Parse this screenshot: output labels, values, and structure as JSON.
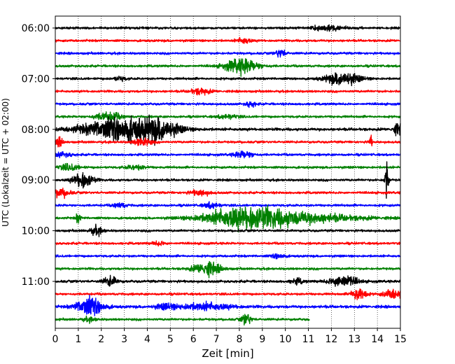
{
  "chart_data": {
    "type": "line",
    "title": "",
    "xlabel": "Zeit  [min]",
    "ylabel": "UTC (Lokalzeit = UTC + 02:00)",
    "xlim": [
      0,
      15
    ],
    "x_ticks": [
      0,
      1,
      2,
      3,
      4,
      5,
      6,
      7,
      8,
      9,
      10,
      11,
      12,
      13,
      14,
      15
    ],
    "x_tick_labels": [
      "0",
      "1",
      "2",
      "3",
      "4",
      "5",
      "6",
      "7",
      "8",
      "9",
      "10",
      "11",
      "12",
      "13",
      "14",
      "15"
    ],
    "y_tick_labels": [
      "06:00",
      "07:00",
      "08:00",
      "09:00",
      "10:00",
      "11:00"
    ],
    "y_tick_rows": [
      0,
      4,
      8,
      12,
      16,
      20
    ],
    "grid": "vertical-dotted",
    "trace_colors": [
      "#000000",
      "#ff0000",
      "#0000ff",
      "#008000"
    ],
    "traces": [
      {
        "row": 0,
        "end_min": 15,
        "base_amp": 1.0,
        "events": [
          {
            "t": 11.8,
            "amp": 2.0,
            "w": 0.5
          }
        ]
      },
      {
        "row": 1,
        "end_min": 15,
        "base_amp": 1.0,
        "events": [
          {
            "t": 8.2,
            "amp": 2.2,
            "w": 0.2
          }
        ]
      },
      {
        "row": 2,
        "end_min": 15,
        "base_amp": 1.0,
        "events": [
          {
            "t": 9.8,
            "amp": 3.0,
            "w": 0.15
          }
        ]
      },
      {
        "row": 3,
        "end_min": 15,
        "base_amp": 1.0,
        "events": [
          {
            "t": 8.1,
            "amp": 5.5,
            "w": 0.5
          }
        ]
      },
      {
        "row": 4,
        "end_min": 15,
        "base_amp": 1.0,
        "events": [
          {
            "t": 12.5,
            "amp": 5.0,
            "w": 0.5
          },
          {
            "t": 2.8,
            "amp": 1.5,
            "w": 0.2
          }
        ]
      },
      {
        "row": 5,
        "end_min": 15,
        "base_amp": 1.0,
        "events": [
          {
            "t": 6.3,
            "amp": 2.2,
            "w": 0.3
          }
        ]
      },
      {
        "row": 6,
        "end_min": 15,
        "base_amp": 1.0,
        "events": [
          {
            "t": 8.5,
            "amp": 2.0,
            "w": 0.15
          }
        ]
      },
      {
        "row": 7,
        "end_min": 15,
        "base_amp": 1.0,
        "events": [
          {
            "t": 2.3,
            "amp": 3.0,
            "w": 0.4
          },
          {
            "t": 7.5,
            "amp": 1.5,
            "w": 0.3
          }
        ]
      },
      {
        "row": 8,
        "end_min": 15,
        "base_amp": 1.2,
        "events": [
          {
            "t": 3.0,
            "amp": 9.0,
            "w": 1.2
          },
          {
            "t": 4.6,
            "amp": 5.0,
            "w": 0.5
          },
          {
            "t": 14.9,
            "amp": 4.0,
            "w": 0.15
          }
        ]
      },
      {
        "row": 9,
        "end_min": 15,
        "base_amp": 1.0,
        "events": [
          {
            "t": 0.1,
            "amp": 3.5,
            "w": 0.15
          },
          {
            "t": 3.8,
            "amp": 3.0,
            "w": 0.25
          },
          {
            "t": 13.7,
            "amp": 4.5,
            "w": 0.05
          }
        ]
      },
      {
        "row": 10,
        "end_min": 15,
        "base_amp": 1.0,
        "events": [
          {
            "t": 8.2,
            "amp": 2.5,
            "w": 0.3
          },
          {
            "t": 0.3,
            "amp": 1.5,
            "w": 0.3
          }
        ]
      },
      {
        "row": 11,
        "end_min": 15,
        "base_amp": 1.0,
        "events": [
          {
            "t": 0.6,
            "amp": 2.2,
            "w": 0.3
          },
          {
            "t": 3.5,
            "amp": 1.5,
            "w": 0.3
          }
        ]
      },
      {
        "row": 12,
        "end_min": 15,
        "base_amp": 1.0,
        "events": [
          {
            "t": 1.2,
            "amp": 6.0,
            "w": 0.3
          },
          {
            "t": 14.4,
            "amp": 14.0,
            "w": 0.06
          }
        ]
      },
      {
        "row": 13,
        "end_min": 15,
        "base_amp": 1.0,
        "events": [
          {
            "t": 0.2,
            "amp": 3.0,
            "w": 0.3
          },
          {
            "t": 6.3,
            "amp": 2.0,
            "w": 0.3
          }
        ]
      },
      {
        "row": 14,
        "end_min": 15,
        "base_amp": 1.0,
        "events": [
          {
            "t": 2.8,
            "amp": 1.8,
            "w": 0.2
          },
          {
            "t": 6.8,
            "amp": 2.0,
            "w": 0.25
          }
        ]
      },
      {
        "row": 15,
        "end_min": 15,
        "base_amp": 1.0,
        "events": [
          {
            "t": 8.2,
            "amp": 7.0,
            "w": 1.2
          },
          {
            "t": 10.5,
            "amp": 3.5,
            "w": 1.8
          },
          {
            "t": 1.0,
            "amp": 3.5,
            "w": 0.08
          }
        ]
      },
      {
        "row": 16,
        "end_min": 15,
        "base_amp": 1.0,
        "events": [
          {
            "t": 1.8,
            "amp": 3.0,
            "w": 0.2
          }
        ]
      },
      {
        "row": 17,
        "end_min": 15,
        "base_amp": 1.0,
        "events": [
          {
            "t": 4.5,
            "amp": 1.5,
            "w": 0.2
          }
        ]
      },
      {
        "row": 18,
        "end_min": 15,
        "base_amp": 1.0,
        "events": [
          {
            "t": 9.7,
            "amp": 1.8,
            "w": 0.2
          }
        ]
      },
      {
        "row": 19,
        "end_min": 15,
        "base_amp": 1.0,
        "events": [
          {
            "t": 6.6,
            "amp": 5.0,
            "w": 0.4
          }
        ]
      },
      {
        "row": 20,
        "end_min": 15,
        "base_amp": 1.1,
        "events": [
          {
            "t": 2.4,
            "amp": 3.5,
            "w": 0.2
          },
          {
            "t": 12.5,
            "amp": 4.5,
            "w": 0.4
          },
          {
            "t": 10.5,
            "amp": 1.8,
            "w": 0.2
          }
        ]
      },
      {
        "row": 21,
        "end_min": 15,
        "base_amp": 1.0,
        "events": [
          {
            "t": 13.2,
            "amp": 6.0,
            "w": 0.2
          },
          {
            "t": 14.7,
            "amp": 3.5,
            "w": 0.3
          }
        ]
      },
      {
        "row": 22,
        "end_min": 15,
        "base_amp": 1.2,
        "events": [
          {
            "t": 1.5,
            "amp": 7.0,
            "w": 0.4
          },
          {
            "t": 6.5,
            "amp": 2.5,
            "w": 0.8
          },
          {
            "t": 4.8,
            "amp": 1.8,
            "w": 0.3
          }
        ]
      },
      {
        "row": 23,
        "end_min": 11.05,
        "base_amp": 1.0,
        "events": [
          {
            "t": 8.3,
            "amp": 4.0,
            "w": 0.15
          },
          {
            "t": 1.5,
            "amp": 1.5,
            "w": 0.2
          }
        ]
      }
    ]
  }
}
